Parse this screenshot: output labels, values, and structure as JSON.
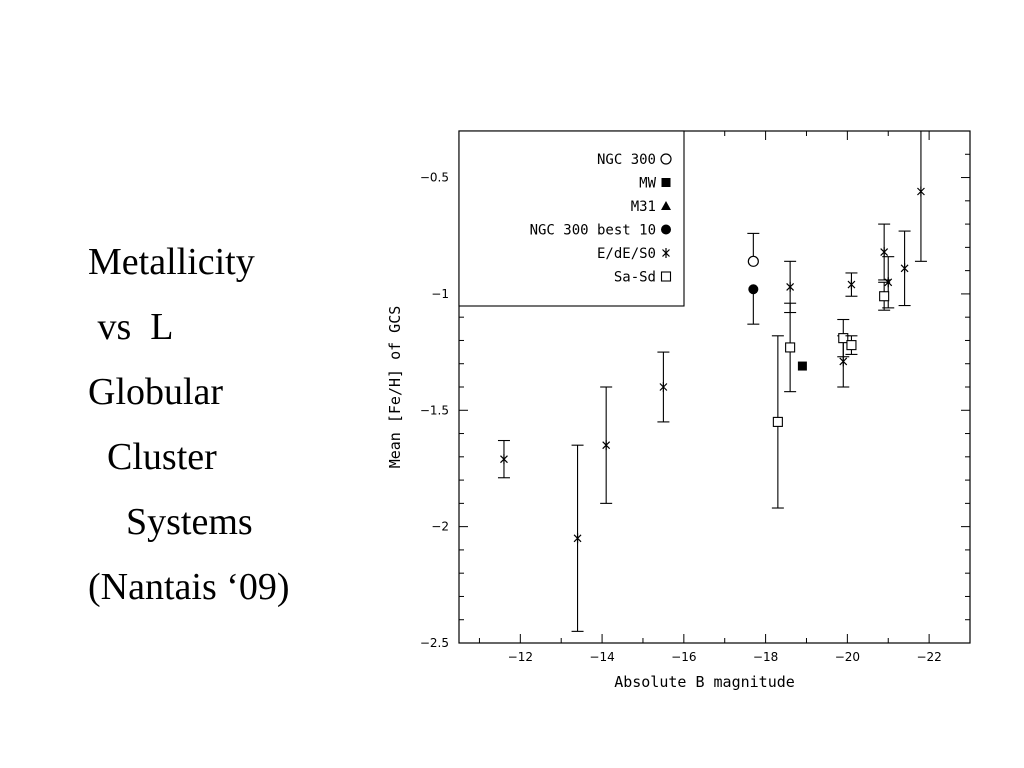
{
  "slide": {
    "lines": [
      "Metallicity",
      " vs  L",
      "Globular",
      "  Cluster",
      "    Systems",
      "(Nantais ‘09)"
    ]
  },
  "chart_data": {
    "type": "scatter",
    "xlabel": "Absolute B magnitude",
    "ylabel": "Mean [Fe/H] of GCS",
    "xlim": [
      -10.5,
      -23
    ],
    "ylim": [
      -2.5,
      -0.3
    ],
    "x_ticks": [
      -12,
      -14,
      -16,
      -18,
      -20,
      -22
    ],
    "y_ticks": [
      -0.5,
      -1,
      -1.5,
      -2,
      -2.5
    ],
    "legend_position": "top-left",
    "series": [
      {
        "name": "NGC 300",
        "marker": "open-circle",
        "points": [
          {
            "x": -17.7,
            "y": -0.86,
            "err_lo": 0,
            "err_hi": 0.12
          }
        ]
      },
      {
        "name": "MW",
        "marker": "filled-square",
        "points": [
          {
            "x": -18.9,
            "y": -1.31,
            "err_lo": 0,
            "err_hi": 0
          }
        ]
      },
      {
        "name": "M31",
        "marker": "filled-triangle",
        "points": []
      },
      {
        "name": "NGC 300 best 10",
        "marker": "filled-circle",
        "points": [
          {
            "x": -17.7,
            "y": -0.98,
            "err_lo": 0.15,
            "err_hi": 0
          }
        ]
      },
      {
        "name": "E/dE/S0",
        "marker": "asterisk",
        "points": [
          {
            "x": -11.6,
            "y": -1.71,
            "err_lo": 0.08,
            "err_hi": 0.08
          },
          {
            "x": -13.4,
            "y": -2.05,
            "err_lo": 0.4,
            "err_hi": 0.4
          },
          {
            "x": -14.1,
            "y": -1.65,
            "err_lo": 0.25,
            "err_hi": 0.25
          },
          {
            "x": -15.5,
            "y": -1.4,
            "err_lo": 0.15,
            "err_hi": 0.15
          },
          {
            "x": -18.6,
            "y": -0.97,
            "err_lo": 0.11,
            "err_hi": 0.11
          },
          {
            "x": -19.9,
            "y": -1.29,
            "err_lo": 0.11,
            "err_hi": 0.11
          },
          {
            "x": -20.1,
            "y": -0.96,
            "err_lo": 0.05,
            "err_hi": 0.05
          },
          {
            "x": -20.9,
            "y": -0.82,
            "err_lo": 0.12,
            "err_hi": 0.12
          },
          {
            "x": -21.0,
            "y": -0.95,
            "err_lo": 0.11,
            "err_hi": 0.11
          },
          {
            "x": -21.4,
            "y": -0.89,
            "err_lo": 0.16,
            "err_hi": 0.16
          },
          {
            "x": -21.8,
            "y": -0.56,
            "err_lo": 0.3,
            "err_hi": 0.3
          }
        ]
      },
      {
        "name": "Sa-Sd",
        "marker": "open-square",
        "points": [
          {
            "x": -18.3,
            "y": -1.55,
            "err_lo": 0.37,
            "err_hi": 0.37
          },
          {
            "x": -18.6,
            "y": -1.23,
            "err_lo": 0.19,
            "err_hi": 0.19
          },
          {
            "x": -19.9,
            "y": -1.19,
            "err_lo": 0.08,
            "err_hi": 0.08
          },
          {
            "x": -20.1,
            "y": -1.22,
            "err_lo": 0.04,
            "err_hi": 0.04
          },
          {
            "x": -20.9,
            "y": -1.01,
            "err_lo": 0.06,
            "err_hi": 0.06
          }
        ]
      }
    ]
  }
}
